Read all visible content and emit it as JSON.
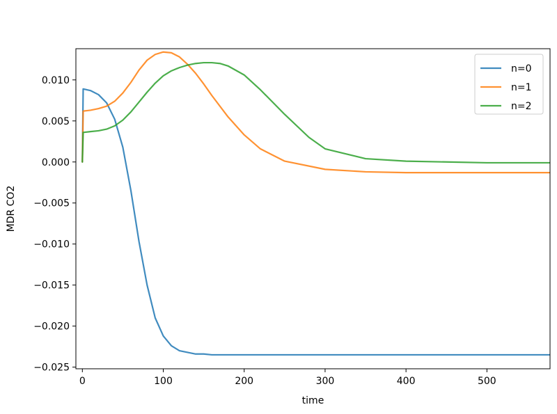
{
  "chart_data": {
    "type": "line",
    "title": "",
    "xlabel": "time",
    "ylabel": "MDR CO2",
    "xlim": [
      -8,
      578
    ],
    "ylim": [
      -0.0252,
      0.0138
    ],
    "xticks": [
      0,
      100,
      200,
      300,
      400,
      500
    ],
    "xtick_labels": [
      "0",
      "100",
      "200",
      "300",
      "400",
      "500"
    ],
    "yticks": [
      0.01,
      0.005,
      0.0,
      -0.005,
      -0.01,
      -0.015,
      -0.02,
      -0.025
    ],
    "ytick_labels": [
      "0.010",
      "0.005",
      "0.000",
      "−0.005",
      "−0.010",
      "−0.015",
      "−0.020",
      "−0.025"
    ],
    "grid": false,
    "legend_position": "top-right",
    "series": [
      {
        "name": "n=0",
        "color": "#1f77b4",
        "x": [
          0,
          1,
          10,
          20,
          30,
          40,
          50,
          60,
          70,
          80,
          90,
          100,
          110,
          120,
          130,
          140,
          150,
          160,
          180,
          200,
          250,
          300,
          400,
          500,
          578
        ],
        "y": [
          0,
          0.0089,
          0.0087,
          0.0082,
          0.0072,
          0.0052,
          0.0018,
          -0.0035,
          -0.0097,
          -0.015,
          -0.019,
          -0.0212,
          -0.0224,
          -0.023,
          -0.0232,
          -0.0234,
          -0.0234,
          -0.0235,
          -0.0235,
          -0.0235,
          -0.0235,
          -0.0235,
          -0.0235,
          -0.0235,
          -0.0235
        ]
      },
      {
        "name": "n=1",
        "color": "#ff7f0e",
        "x": [
          0,
          1,
          10,
          20,
          30,
          40,
          50,
          60,
          70,
          80,
          90,
          100,
          110,
          120,
          130,
          140,
          150,
          160,
          180,
          200,
          220,
          250,
          300,
          350,
          400,
          450,
          500,
          578
        ],
        "y": [
          0,
          0.0062,
          0.0063,
          0.0065,
          0.0068,
          0.0074,
          0.0084,
          0.0097,
          0.0112,
          0.0124,
          0.0131,
          0.0134,
          0.0133,
          0.0128,
          0.0119,
          0.0108,
          0.0095,
          0.0081,
          0.0055,
          0.0033,
          0.0016,
          0.0001,
          -0.0009,
          -0.0012,
          -0.0013,
          -0.0013,
          -0.0013,
          -0.0013
        ]
      },
      {
        "name": "n=2",
        "color": "#2ca02c",
        "x": [
          0,
          1,
          10,
          20,
          30,
          40,
          50,
          60,
          70,
          80,
          90,
          100,
          110,
          120,
          130,
          140,
          150,
          160,
          170,
          180,
          200,
          220,
          250,
          280,
          300,
          350,
          400,
          450,
          500,
          578
        ],
        "y": [
          0,
          0.0036,
          0.0037,
          0.0038,
          0.004,
          0.0044,
          0.0051,
          0.0061,
          0.0073,
          0.0085,
          0.0096,
          0.0105,
          0.0111,
          0.0115,
          0.0118,
          0.012,
          0.0121,
          0.0121,
          0.012,
          0.0117,
          0.0106,
          0.0088,
          0.0058,
          0.003,
          0.0016,
          0.0004,
          0.0001,
          0.0,
          -0.0001,
          -0.0001
        ]
      }
    ]
  }
}
